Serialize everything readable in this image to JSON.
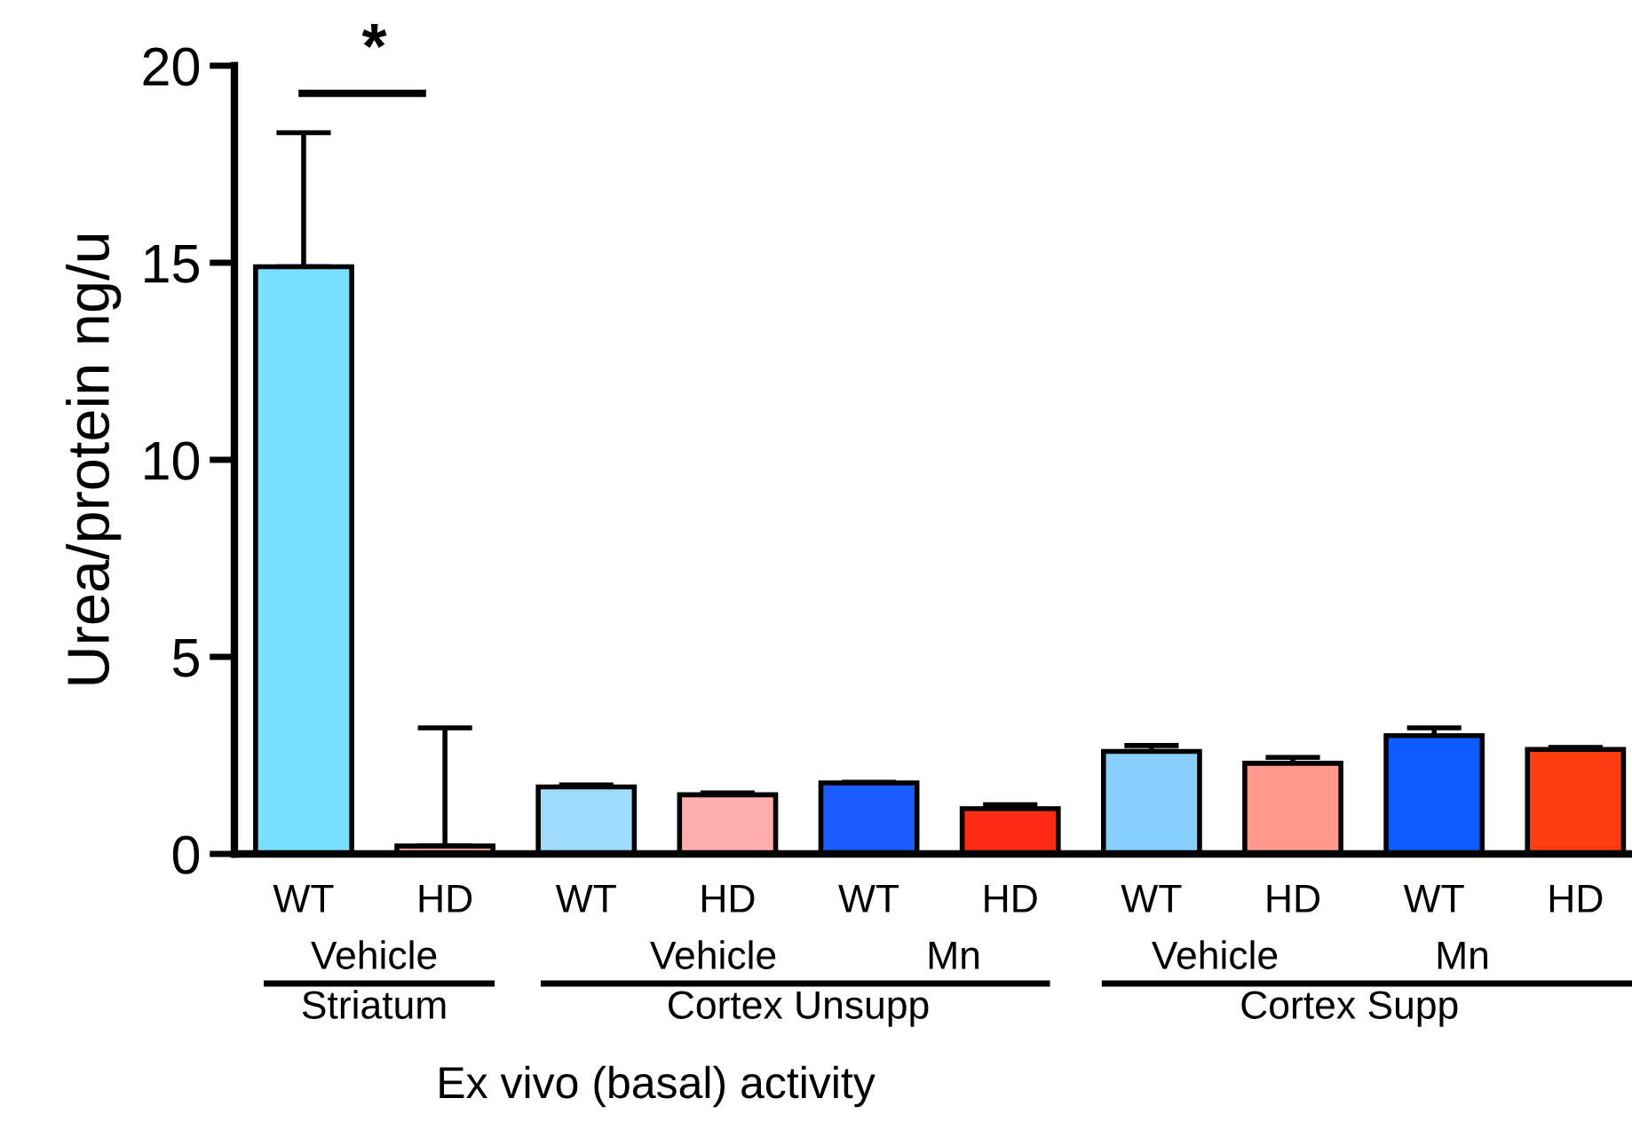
{
  "chart_data": {
    "type": "bar",
    "ylabel": "Urea/protein ng/u",
    "xlabel": "Ex vivo (basal) activity",
    "categories": [
      "WT",
      "HD",
      "WT",
      "HD",
      "WT",
      "HD",
      "WT",
      "HD",
      "WT",
      "HD"
    ],
    "values": [
      14.9,
      0.2,
      1.7,
      1.5,
      1.8,
      1.15,
      2.6,
      2.3,
      3.0,
      2.65
    ],
    "errors": [
      3.4,
      3.0,
      0.05,
      0.05,
      0.02,
      0.1,
      0.15,
      0.15,
      0.2,
      0.05
    ],
    "colors": [
      "#77e0ff",
      "#ffaaaa",
      "#a0dcff",
      "#ffaeb0",
      "#1a5cff",
      "#ff2a14",
      "#88d0ff",
      "#ff9990",
      "#0c5cff",
      "#ff3c10"
    ],
    "ylim": [
      0,
      20
    ],
    "yticks": [
      0,
      5,
      10,
      15,
      20
    ],
    "grid": false,
    "legend": false,
    "annotations": [
      "*",
      "Vehicle",
      "Vehicle",
      "Mn",
      "Vehicle",
      "Mn",
      "Striatum",
      "Cortex Unsupp",
      "Cortex Supp"
    ]
  }
}
